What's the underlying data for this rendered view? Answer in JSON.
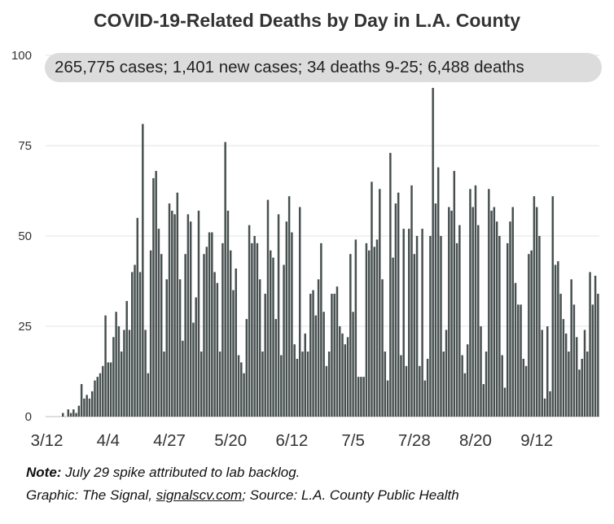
{
  "chart_data": {
    "type": "bar",
    "title": "COVID-19-Related Deaths by Day in L.A. County",
    "summary": "265,775 cases; 1,401 new cases; 34 deaths 9-25; 6,488 deaths",
    "ylim": [
      0,
      100
    ],
    "yticks": [
      0,
      25,
      50,
      75,
      100
    ],
    "x_start": "3/12",
    "x_end": "9/25",
    "xtick_labels": [
      "3/12",
      "4/4",
      "4/27",
      "5/20",
      "6/12",
      "7/5",
      "7/28",
      "8/20",
      "9/12"
    ],
    "grid": true,
    "legend": false,
    "bar_color": "#47504f",
    "values": [
      0,
      0,
      0,
      0,
      0,
      0,
      1,
      0,
      2,
      1,
      2,
      1,
      3,
      9,
      5,
      6,
      5,
      7,
      10,
      11,
      12,
      14,
      28,
      15,
      15,
      22,
      29,
      25,
      18,
      24,
      32,
      24,
      40,
      42,
      55,
      40,
      81,
      24,
      12,
      46,
      66,
      68,
      52,
      45,
      18,
      38,
      59,
      57,
      56,
      62,
      38,
      21,
      45,
      56,
      54,
      26,
      33,
      57,
      18,
      45,
      47,
      51,
      51,
      40,
      37,
      18,
      48,
      76,
      57,
      46,
      35,
      41,
      17,
      15,
      12,
      27,
      53,
      48,
      50,
      48,
      38,
      18,
      34,
      60,
      46,
      44,
      27,
      56,
      17,
      42,
      54,
      61,
      51,
      20,
      16,
      58,
      18,
      23,
      18,
      34,
      35,
      28,
      38,
      48,
      29,
      14,
      18,
      34,
      34,
      36,
      25,
      23,
      20,
      22,
      45,
      29,
      49,
      11,
      11,
      11,
      48,
      46,
      65,
      47,
      49,
      63,
      38,
      18,
      10,
      73,
      44,
      59,
      62,
      17,
      52,
      14,
      52,
      64,
      45,
      50,
      14,
      52,
      10,
      16,
      50,
      91,
      59,
      69,
      50,
      18,
      24,
      58,
      57,
      68,
      48,
      53,
      17,
      12,
      20,
      63,
      58,
      64,
      53,
      25,
      9,
      18,
      63,
      57,
      58,
      54,
      50,
      17,
      8,
      48,
      54,
      58,
      37,
      31,
      31,
      16,
      14,
      45,
      46,
      61,
      58,
      50,
      24,
      5,
      25,
      7,
      61,
      42,
      43,
      34,
      27,
      23,
      18,
      38,
      31,
      22,
      13,
      16,
      24,
      18,
      40,
      31,
      39,
      34
    ]
  },
  "notes": {
    "note_label": "Note:",
    "note_text": " July 29 spike attributed to lab backlog.",
    "credit_prefix": "Graphic: The Signal, ",
    "credit_link": "signalscv.com",
    "credit_suffix": "; Source: L.A. County Public Health"
  }
}
